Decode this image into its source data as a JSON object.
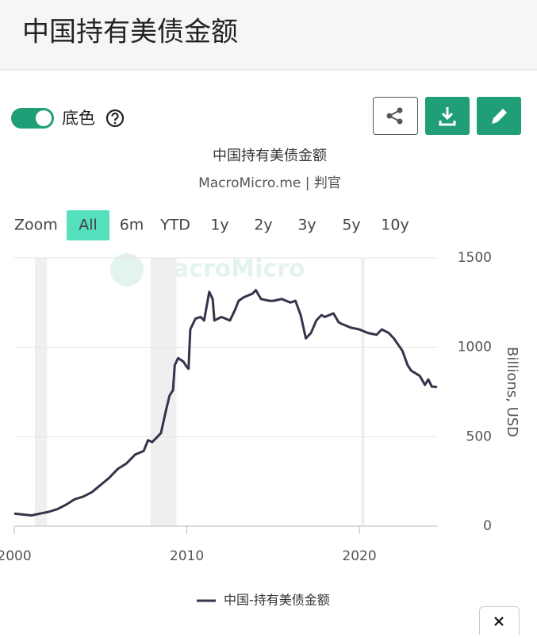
{
  "header": {
    "title": "中国持有美债金额"
  },
  "controls": {
    "toggle_label": "底色"
  },
  "zoom": {
    "label": "Zoom",
    "options": [
      "All",
      "6m",
      "YTD",
      "1y",
      "2y",
      "3y",
      "5y",
      "10y"
    ],
    "active": 0
  },
  "chart_data": {
    "type": "line",
    "title": "中国持有美债金额",
    "subtitle": "MacroMicro.me | 判官",
    "watermark": "MacroMicro",
    "y_label": "Billions, USD",
    "xlim": [
      2000,
      2024.55
    ],
    "ylim": [
      0,
      1500
    ],
    "xticks": [
      2000,
      2010,
      2020
    ],
    "yticks": [
      0,
      500,
      1000,
      1500
    ],
    "grid": true,
    "bands": [
      [
        2001.2,
        2001.9
      ],
      [
        2007.9,
        2009.4
      ],
      [
        2020.1,
        2020.3
      ]
    ],
    "series": [
      {
        "name": "中国-持有美债金额",
        "color": "#33354a",
        "x": [
          2000,
          2000.5,
          2001,
          2001.5,
          2002,
          2002.5,
          2003,
          2003.5,
          2004,
          2004.5,
          2005,
          2005.5,
          2006,
          2006.5,
          2007,
          2007.5,
          2007.75,
          2008,
          2008.5,
          2008.8,
          2009,
          2009.2,
          2009.3,
          2009.5,
          2009.8,
          2010,
          2010.1,
          2010.2,
          2010.5,
          2010.8,
          2011,
          2011.3,
          2011.5,
          2011.6,
          2012,
          2012.5,
          2012.8,
          2013,
          2013.3,
          2013.8,
          2014,
          2014.3,
          2014.8,
          2015,
          2015.5,
          2016,
          2016.3,
          2016.6,
          2016.9,
          2017.2,
          2017.5,
          2017.8,
          2018,
          2018.5,
          2018.8,
          2019,
          2019.5,
          2020,
          2020.5,
          2021,
          2021.3,
          2021.7,
          2022,
          2022.5,
          2022.8,
          2023,
          2023.5,
          2023.8,
          2024,
          2024.2,
          2024.4,
          2024.5
        ],
        "values": [
          70,
          65,
          60,
          70,
          80,
          95,
          120,
          150,
          165,
          190,
          230,
          270,
          320,
          350,
          400,
          420,
          480,
          470,
          520,
          650,
          730,
          760,
          900,
          940,
          920,
          890,
          880,
          1100,
          1160,
          1170,
          1150,
          1310,
          1270,
          1150,
          1170,
          1150,
          1210,
          1260,
          1280,
          1300,
          1320,
          1270,
          1260,
          1260,
          1270,
          1250,
          1260,
          1180,
          1050,
          1080,
          1150,
          1180,
          1170,
          1190,
          1140,
          1130,
          1110,
          1100,
          1080,
          1070,
          1100,
          1080,
          1050,
          980,
          900,
          870,
          840,
          790,
          820,
          780,
          780,
          775
        ]
      }
    ]
  }
}
